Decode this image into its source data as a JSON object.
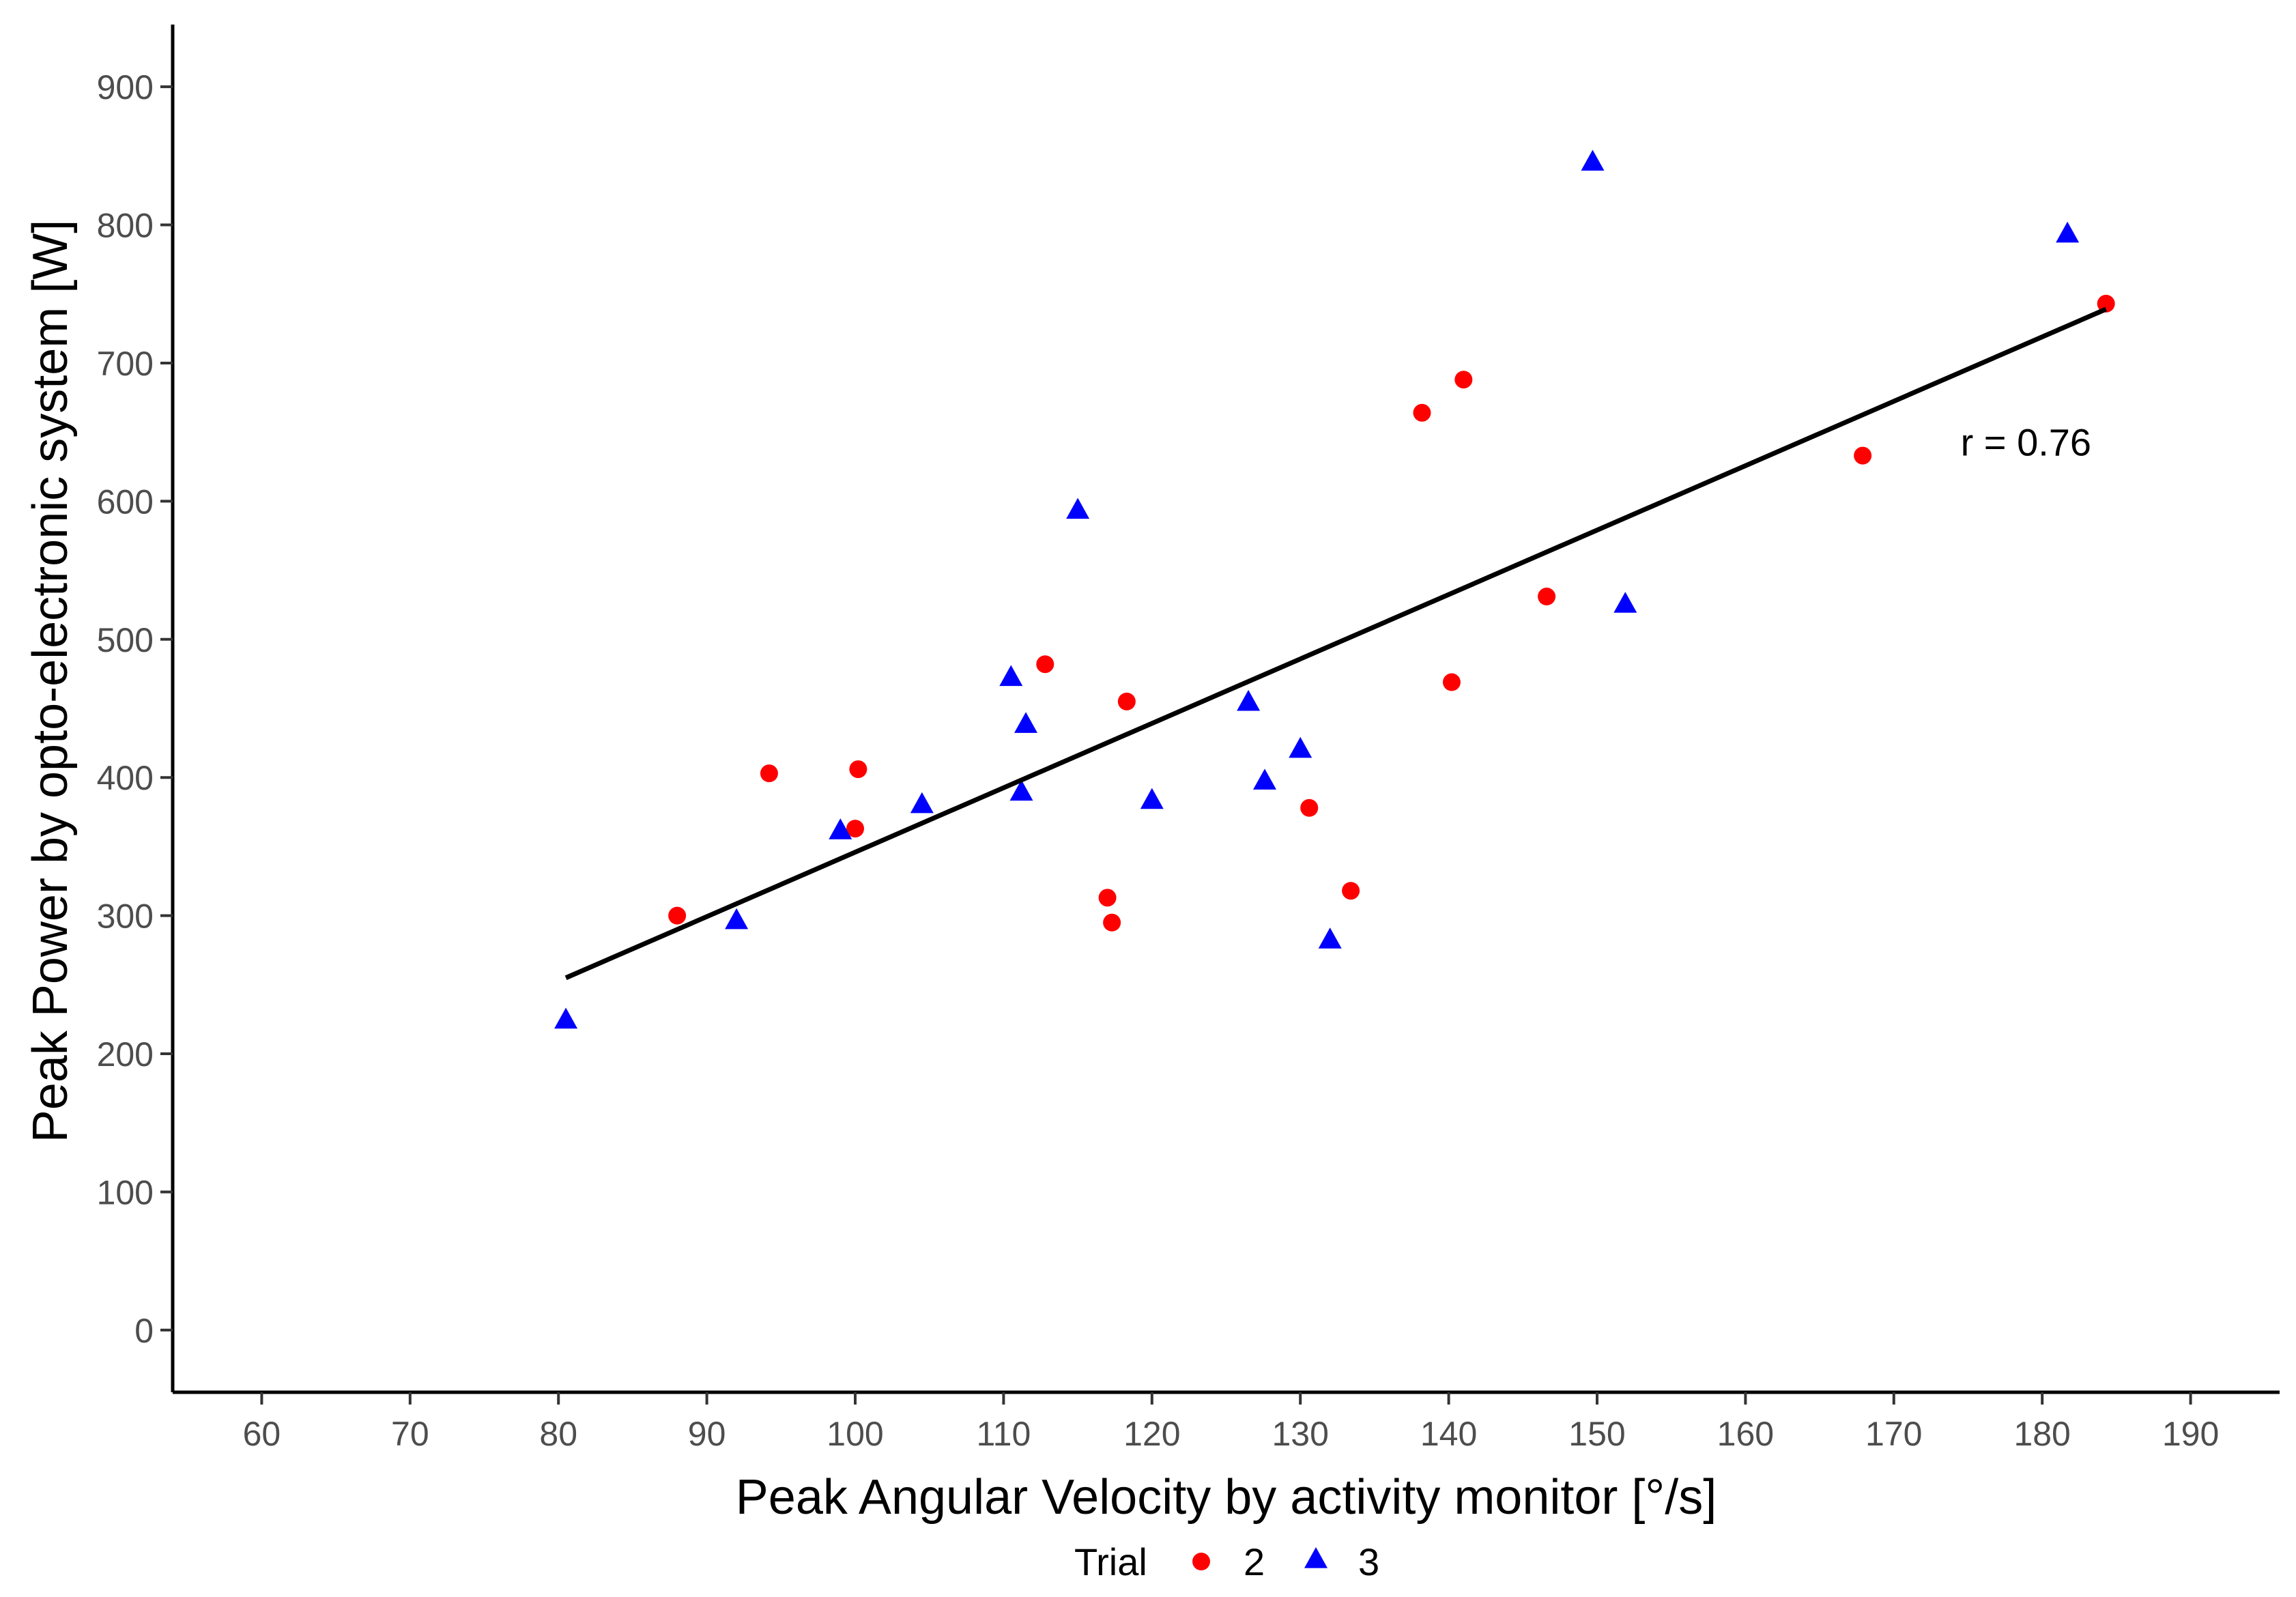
{
  "chart_data": {
    "type": "scatter",
    "title": "",
    "xlabel": "Peak Angular Velocity by activity monitor [°/s]",
    "ylabel": "Peak Power by opto-electronic system [W]",
    "xlim": [
      54,
      196
    ],
    "ylim": [
      -45,
      945
    ],
    "xticks": [
      60,
      70,
      80,
      90,
      100,
      110,
      120,
      130,
      140,
      150,
      160,
      170,
      180,
      190
    ],
    "yticks": [
      0,
      100,
      200,
      300,
      400,
      500,
      600,
      700,
      800,
      900
    ],
    "grid": false,
    "legend_position": "bottom",
    "legend_title": "Trial",
    "series": [
      {
        "name": "2",
        "marker": "circle",
        "color": "#ff0000",
        "points": [
          [
            88,
            300
          ],
          [
            94.2,
            403
          ],
          [
            100,
            363
          ],
          [
            100.2,
            406
          ],
          [
            112.8,
            482
          ],
          [
            117,
            313
          ],
          [
            117.3,
            295
          ],
          [
            118.3,
            455
          ],
          [
            130.6,
            378
          ],
          [
            133.4,
            318
          ],
          [
            138.2,
            664
          ],
          [
            140.2,
            469
          ],
          [
            141,
            688
          ],
          [
            146.6,
            531
          ],
          [
            167.9,
            633
          ],
          [
            184.3,
            743
          ]
        ]
      },
      {
        "name": "3",
        "marker": "triangle",
        "color": "#0000ff",
        "points": [
          [
            80.5,
            224
          ],
          [
            92,
            296
          ],
          [
            99,
            361
          ],
          [
            104.5,
            380
          ],
          [
            110.5,
            472
          ],
          [
            111.2,
            389
          ],
          [
            111.5,
            438
          ],
          [
            115,
            593
          ],
          [
            120,
            383
          ],
          [
            126.5,
            454
          ],
          [
            127.6,
            397
          ],
          [
            130,
            420
          ],
          [
            132,
            282
          ],
          [
            149.7,
            845
          ],
          [
            151.9,
            525
          ],
          [
            181.7,
            793
          ]
        ]
      }
    ],
    "regression_line": {
      "x": [
        80.5,
        184.3
      ],
      "y": [
        255,
        739
      ]
    },
    "annotation": {
      "text": "r = 0.76",
      "x": 174.5,
      "y": 643
    }
  }
}
